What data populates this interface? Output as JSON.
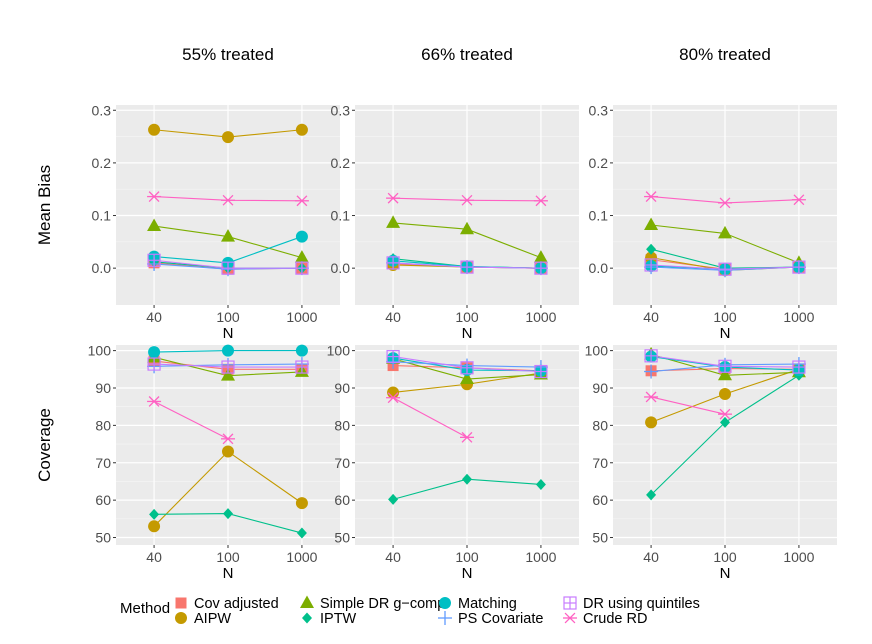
{
  "figure": {
    "columns": [
      "55% treated",
      "66% treated",
      "80% treated"
    ],
    "rows": [
      "Mean Bias",
      "Coverage"
    ],
    "xlabel": "N"
  },
  "legend": {
    "title": "Method",
    "position": "bottom",
    "items": [
      {
        "name": "Cov adjusted",
        "color": "#F8766D",
        "shape": "square"
      },
      {
        "name": "AIPW",
        "color": "#C49A00",
        "shape": "circle"
      },
      {
        "name": "Simple DR g−comp",
        "color": "#7CAE00",
        "shape": "triangle"
      },
      {
        "name": "IPTW",
        "color": "#00C08B",
        "shape": "diamond"
      },
      {
        "name": "Matching",
        "color": "#00BFC4",
        "shape": "circle"
      },
      {
        "name": "PS Covariate",
        "color": "#619CFF",
        "shape": "plus"
      },
      {
        "name": "DR using quintiles",
        "color": "#C77CFF",
        "shape": "boxplus"
      },
      {
        "name": "Crude RD",
        "color": "#FF61C3",
        "shape": "asterisk"
      }
    ]
  },
  "chart_data": [
    {
      "type": "line",
      "panel": "Mean Bias / 55% treated",
      "categories": [
        "40",
        "100",
        "1000"
      ],
      "ylim": [
        -0.07,
        0.31
      ],
      "yticks": [
        0.0,
        0.1,
        0.2,
        0.3
      ],
      "series": [
        {
          "name": "Cov adjusted",
          "values": [
            0.01,
            -0.002,
            0.0
          ]
        },
        {
          "name": "AIPW",
          "values": [
            0.263,
            0.249,
            0.263
          ]
        },
        {
          "name": "Simple DR g−comp",
          "values": [
            0.08,
            0.06,
            0.02
          ]
        },
        {
          "name": "IPTW",
          "values": [
            0.012,
            0.0,
            0.0
          ]
        },
        {
          "name": "Matching",
          "values": [
            0.022,
            0.01,
            0.06
          ]
        },
        {
          "name": "PS Covariate",
          "values": [
            0.008,
            -0.002,
            0.0
          ]
        },
        {
          "name": "DR using quintiles",
          "values": [
            0.015,
            0.0,
            0.0
          ]
        },
        {
          "name": "Crude RD",
          "values": [
            0.136,
            0.129,
            0.128
          ]
        }
      ]
    },
    {
      "type": "line",
      "panel": "Mean Bias / 66% treated",
      "categories": [
        "40",
        "100",
        "1000"
      ],
      "ylim": [
        -0.07,
        0.31
      ],
      "yticks": [
        0.0,
        0.1,
        0.2,
        0.3
      ],
      "series": [
        {
          "name": "Cov adjusted",
          "values": [
            0.008,
            0.002,
            0.0
          ]
        },
        {
          "name": "AIPW",
          "values": [
            0.006,
            0.002,
            0.0
          ]
        },
        {
          "name": "Simple DR g−comp",
          "values": [
            0.086,
            0.074,
            0.02
          ]
        },
        {
          "name": "IPTW",
          "values": [
            0.018,
            0.003,
            0.0
          ]
        },
        {
          "name": "Matching",
          "values": [
            0.014,
            0.003,
            0.0
          ]
        },
        {
          "name": "PS Covariate",
          "values": [
            0.01,
            0.002,
            0.0
          ]
        },
        {
          "name": "DR using quintiles",
          "values": [
            0.01,
            0.002,
            0.0
          ]
        },
        {
          "name": "Crude RD",
          "values": [
            0.133,
            0.129,
            0.128
          ]
        }
      ]
    },
    {
      "type": "line",
      "panel": "Mean Bias / 80% treated",
      "categories": [
        "40",
        "100",
        "1000"
      ],
      "ylim": [
        -0.07,
        0.31
      ],
      "yticks": [
        0.0,
        0.1,
        0.2,
        0.3
      ],
      "series": [
        {
          "name": "Cov adjusted",
          "values": [
            0.016,
            -0.002,
            0.002
          ]
        },
        {
          "name": "AIPW",
          "values": [
            0.02,
            -0.004,
            0.002
          ]
        },
        {
          "name": "Simple DR g−comp",
          "values": [
            0.082,
            0.066,
            0.01
          ]
        },
        {
          "name": "IPTW",
          "values": [
            0.036,
            0.0,
            0.002
          ]
        },
        {
          "name": "Matching",
          "values": [
            0.004,
            -0.002,
            0.002
          ]
        },
        {
          "name": "PS Covariate",
          "values": [
            0.002,
            -0.004,
            0.002
          ]
        },
        {
          "name": "DR using quintiles",
          "values": [
            0.006,
            -0.002,
            0.002
          ]
        },
        {
          "name": "Crude RD",
          "values": [
            0.136,
            0.124,
            0.13
          ]
        }
      ]
    },
    {
      "type": "line",
      "panel": "Coverage / 55% treated",
      "categories": [
        "40",
        "100",
        "1000"
      ],
      "ylim": [
        48,
        101.5
      ],
      "yticks": [
        50,
        60,
        70,
        80,
        90,
        100
      ],
      "series": [
        {
          "name": "Cov adjusted",
          "values": [
            97.2,
            95.0,
            95.0
          ]
        },
        {
          "name": "AIPW",
          "values": [
            53.0,
            73.0,
            59.2
          ]
        },
        {
          "name": "Simple DR g−comp",
          "values": [
            98.2,
            93.3,
            94.3
          ]
        },
        {
          "name": "IPTW",
          "values": [
            56.2,
            56.4,
            51.2
          ]
        },
        {
          "name": "Matching",
          "values": [
            99.6,
            100.0,
            100.0
          ]
        },
        {
          "name": "PS Covariate",
          "values": [
            95.8,
            96.2,
            96.4
          ]
        },
        {
          "name": "DR using quintiles",
          "values": [
            96.4,
            95.6,
            95.6
          ]
        },
        {
          "name": "Crude RD",
          "values": [
            86.4,
            76.4,
            null
          ]
        }
      ]
    },
    {
      "type": "line",
      "panel": "Coverage / 66% treated",
      "categories": [
        "40",
        "100",
        "1000"
      ],
      "ylim": [
        48,
        101.5
      ],
      "yticks": [
        50,
        60,
        70,
        80,
        90,
        100
      ],
      "series": [
        {
          "name": "Cov adjusted",
          "values": [
            96.0,
            95.4,
            94.6
          ]
        },
        {
          "name": "AIPW",
          "values": [
            88.8,
            91.0,
            94.0
          ]
        },
        {
          "name": "Simple DR g−comp",
          "values": [
            97.8,
            92.4,
            93.6
          ]
        },
        {
          "name": "IPTW",
          "values": [
            60.2,
            65.6,
            64.2
          ]
        },
        {
          "name": "Matching",
          "values": [
            98.0,
            94.8,
            94.6
          ]
        },
        {
          "name": "PS Covariate",
          "values": [
            97.0,
            96.0,
            95.6
          ]
        },
        {
          "name": "DR using quintiles",
          "values": [
            98.4,
            95.4,
            94.4
          ]
        },
        {
          "name": "Crude RD",
          "values": [
            87.4,
            76.8,
            null
          ]
        }
      ]
    },
    {
      "type": "line",
      "panel": "Coverage / 80% treated",
      "categories": [
        "40",
        "100",
        "1000"
      ],
      "ylim": [
        48,
        101.5
      ],
      "yticks": [
        50,
        60,
        70,
        80,
        90,
        100
      ],
      "series": [
        {
          "name": "Cov adjusted",
          "values": [
            94.6,
            95.2,
            95.0
          ]
        },
        {
          "name": "AIPW",
          "values": [
            80.8,
            88.4,
            95.0
          ]
        },
        {
          "name": "Simple DR g−comp",
          "values": [
            99.0,
            93.4,
            94.2
          ]
        },
        {
          "name": "IPTW",
          "values": [
            61.4,
            80.8,
            93.4
          ]
        },
        {
          "name": "Matching",
          "values": [
            98.4,
            95.6,
            94.8
          ]
        },
        {
          "name": "PS Covariate",
          "values": [
            94.4,
            96.2,
            96.4
          ]
        },
        {
          "name": "DR using quintiles",
          "values": [
            98.6,
            95.8,
            95.6
          ]
        },
        {
          "name": "Crude RD",
          "values": [
            87.6,
            83.0,
            null
          ]
        }
      ]
    }
  ]
}
